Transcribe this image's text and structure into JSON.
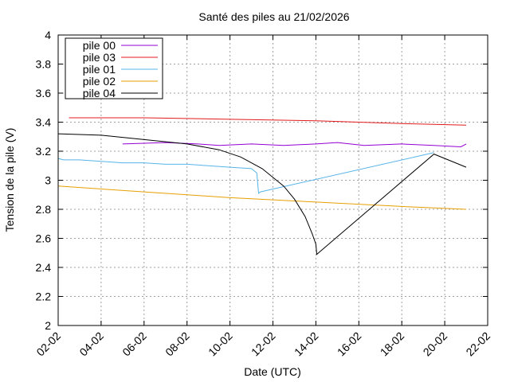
{
  "chart_data": {
    "type": "line",
    "title": "Santé des piles  au 21/02/2026",
    "xlabel": "Date (UTC)",
    "ylabel": "Tension de la pile (V)",
    "x_ticks": [
      "02-02",
      "04-02",
      "06-02",
      "08-02",
      "10-02",
      "12-02",
      "14-02",
      "16-02",
      "18-02",
      "20-02",
      "22-02"
    ],
    "y_ticks": [
      "2",
      "2.2",
      "2.4",
      "2.6",
      "2.8",
      "3",
      "3.2",
      "3.4",
      "3.6",
      "3.8",
      "4"
    ],
    "xlim": [
      "2026-02-02",
      "2026-02-22"
    ],
    "ylim": [
      2,
      4
    ],
    "grid": true,
    "legend_position": "top-left",
    "series": [
      {
        "name": "pile 00",
        "color": "#9400d3",
        "x": [
          "2026-02-05 00:00",
          "2026-02-07 00:00",
          "2026-02-08 12:00",
          "2026-02-09 12:00",
          "2026-02-11 00:00",
          "2026-02-12 12:00",
          "2026-02-14 00:00",
          "2026-02-15 00:00",
          "2026-02-16 06:00",
          "2026-02-18 00:00",
          "2026-02-19 12:00",
          "2026-02-20 18:00",
          "2026-02-21 00:00"
        ],
        "y": [
          3.25,
          3.26,
          3.25,
          3.24,
          3.25,
          3.24,
          3.25,
          3.26,
          3.24,
          3.25,
          3.24,
          3.23,
          3.25
        ]
      },
      {
        "name": "pile 03",
        "color": "#e41a1c",
        "x": [
          "2026-02-02 12:00",
          "2026-02-06 00:00",
          "2026-02-10 00:00",
          "2026-02-14 00:00",
          "2026-02-18 00:00",
          "2026-02-21 00:00"
        ],
        "y": [
          3.43,
          3.43,
          3.42,
          3.41,
          3.39,
          3.38
        ]
      },
      {
        "name": "pile 01",
        "color": "#56b4e9",
        "x": [
          "2026-02-02 00:00",
          "2026-02-02 06:00",
          "2026-02-03 00:00",
          "2026-02-04 00:00",
          "2026-02-05 00:00",
          "2026-02-06 00:00",
          "2026-02-07 00:00",
          "2026-02-08 00:00",
          "2026-02-09 00:00",
          "2026-02-10 00:00",
          "2026-02-11 00:00",
          "2026-02-11 06:00",
          "2026-02-11 08:00",
          "2026-02-11 10:00",
          "2026-02-19 12:00"
        ],
        "y": [
          3.15,
          3.14,
          3.14,
          3.13,
          3.12,
          3.12,
          3.11,
          3.11,
          3.1,
          3.09,
          3.08,
          3.05,
          2.91,
          2.92,
          3.19
        ]
      },
      {
        "name": "pile 02",
        "color": "#e69f00",
        "x": [
          "2026-02-02 00:00",
          "2026-02-06 00:00",
          "2026-02-10 00:00",
          "2026-02-14 00:00",
          "2026-02-18 00:00",
          "2026-02-21 00:00"
        ],
        "y": [
          2.96,
          2.92,
          2.88,
          2.85,
          2.82,
          2.8
        ]
      },
      {
        "name": "pile 04",
        "color": "#000000",
        "x": [
          "2026-02-02 00:00",
          "2026-02-04 00:00",
          "2026-02-06 00:00",
          "2026-02-08 00:00",
          "2026-02-09 12:00",
          "2026-02-10 12:00",
          "2026-02-11 12:00",
          "2026-02-12 12:00",
          "2026-02-13 00:00",
          "2026-02-13 12:00",
          "2026-02-13 20:00",
          "2026-02-14 00:00",
          "2026-02-14 01:00",
          "2026-02-19 12:00",
          "2026-02-20 12:00",
          "2026-02-21 00:00"
        ],
        "y": [
          3.32,
          3.31,
          3.28,
          3.25,
          3.21,
          3.16,
          3.08,
          2.96,
          2.87,
          2.75,
          2.63,
          2.56,
          2.49,
          3.18,
          3.12,
          3.09
        ]
      }
    ]
  }
}
